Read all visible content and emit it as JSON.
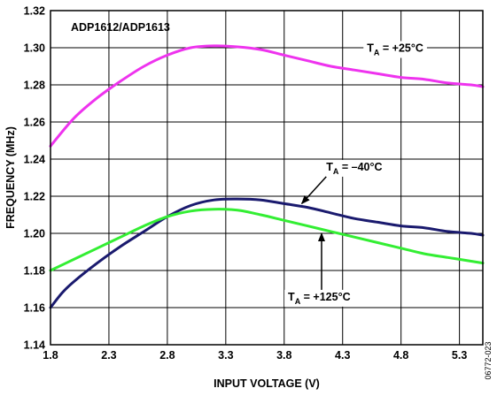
{
  "chart_data": {
    "type": "line",
    "title": "",
    "xlabel": "INPUT VOLTAGE (V)",
    "ylabel": "FREQUENCY (MHz)",
    "xlim": [
      1.8,
      5.5
    ],
    "ylim": [
      1.14,
      1.32
    ],
    "xticks": [
      1.8,
      2.3,
      2.8,
      3.3,
      3.8,
      4.3,
      4.8,
      5.3
    ],
    "xtick_labels": [
      "1.8",
      "2.3",
      "2.8",
      "3.3",
      "3.8",
      "4.3",
      "4.8",
      "5.3"
    ],
    "yticks": [
      1.14,
      1.16,
      1.18,
      1.2,
      1.22,
      1.24,
      1.26,
      1.28,
      1.3,
      1.32
    ],
    "ytick_labels": [
      "1.14",
      "1.16",
      "1.18",
      "1.20",
      "1.22",
      "1.24",
      "1.26",
      "1.28",
      "1.30",
      "1.32"
    ],
    "grid": true,
    "device_label": "ADP1612/ADP1613",
    "figure_id": "06772-023",
    "series": [
      {
        "name": "T_A = +25°C",
        "color": "#ee33ee",
        "x": [
          1.8,
          2.0,
          2.2,
          2.4,
          2.6,
          2.8,
          3.0,
          3.2,
          3.4,
          3.6,
          3.8,
          4.0,
          4.2,
          4.4,
          4.6,
          4.8,
          5.0,
          5.2,
          5.4,
          5.5
        ],
        "y": [
          1.247,
          1.262,
          1.273,
          1.282,
          1.29,
          1.296,
          1.3,
          1.301,
          1.3005,
          1.299,
          1.296,
          1.293,
          1.29,
          1.288,
          1.286,
          1.284,
          1.283,
          1.281,
          1.28,
          1.279
        ]
      },
      {
        "name": "T_A = –40°C",
        "color": "#1a1a6e",
        "x": [
          1.8,
          1.9,
          2.0,
          2.2,
          2.4,
          2.6,
          2.8,
          3.0,
          3.2,
          3.4,
          3.6,
          3.8,
          4.0,
          4.2,
          4.4,
          4.6,
          4.8,
          5.0,
          5.2,
          5.4,
          5.5
        ],
        "y": [
          1.16,
          1.168,
          1.174,
          1.184,
          1.193,
          1.201,
          1.209,
          1.215,
          1.218,
          1.2185,
          1.218,
          1.216,
          1.214,
          1.211,
          1.208,
          1.206,
          1.204,
          1.203,
          1.201,
          1.2,
          1.199
        ]
      },
      {
        "name": "T_A = +125°C",
        "color": "#33ee33",
        "x": [
          1.8,
          2.0,
          2.2,
          2.4,
          2.6,
          2.8,
          3.0,
          3.2,
          3.4,
          3.6,
          3.8,
          4.0,
          4.2,
          4.4,
          4.6,
          4.8,
          5.0,
          5.2,
          5.4,
          5.5
        ],
        "y": [
          1.18,
          1.186,
          1.192,
          1.198,
          1.204,
          1.209,
          1.212,
          1.213,
          1.2125,
          1.21,
          1.207,
          1.204,
          1.201,
          1.198,
          1.195,
          1.192,
          1.189,
          1.187,
          1.185,
          1.184
        ]
      }
    ],
    "annotations": [
      {
        "label_main": "T",
        "label_sub": "A",
        "label_rest": " = +25°C",
        "position": "upper right",
        "x": 4.75,
        "y": 1.3
      },
      {
        "label_main": "T",
        "label_sub": "A",
        "label_rest": " = –40°C",
        "position": "middle right",
        "x": 4.4,
        "y": 1.236,
        "arrow_to_x": 3.95,
        "arrow_to_y": 1.216
      },
      {
        "label_main": "T",
        "label_sub": "A",
        "label_rest": " = +125°C",
        "position": "lower middle",
        "x": 4.1,
        "y": 1.166,
        "arrow_to_x": 4.12,
        "arrow_to_y": 1.2
      }
    ]
  }
}
